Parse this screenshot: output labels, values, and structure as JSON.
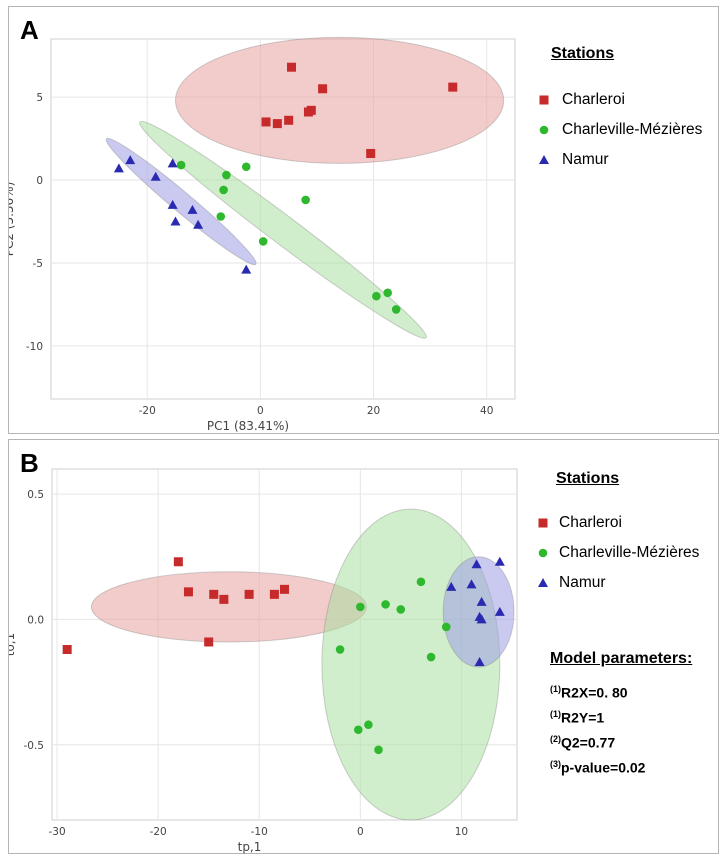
{
  "colors": {
    "Charleroi": "#c62a2a",
    "Charleville-Mézières": "#2eb82e",
    "Namur": "#2a2ab0",
    "ellipse_Charleroi": "#e8a0a0",
    "ellipse_Charleville-Mézières": "#a9e0a0",
    "ellipse_Namur": "#9f9fe6"
  },
  "panelA": {
    "letter": "A",
    "legend_title": "Stations",
    "legend": [
      "Charleroi",
      "Charleville-Mézières",
      "Namur"
    ]
  },
  "panelB": {
    "letter": "B",
    "legend_title": "Stations",
    "legend": [
      "Charleroi",
      "Charleville-Mézières",
      "Namur"
    ],
    "model_params_title": "Model parameters:",
    "model_params": [
      {
        "sup": "(1)",
        "text": "R2X=0. 80"
      },
      {
        "sup": "(1)",
        "text": "R2Y=1"
      },
      {
        "sup": "(2)",
        "text": "Q2=0.77"
      },
      {
        "sup": "(3)",
        "text": "p-value=0.02"
      }
    ]
  },
  "chart_data": [
    {
      "type": "scatter",
      "title": "",
      "xlabel": "PC1 (83.41%)",
      "ylabel": "PC2 (5.56%)",
      "xlim": [
        -37,
        45
      ],
      "ylim": [
        -13.2,
        8.5
      ],
      "xticks": [
        -20,
        0,
        20,
        40
      ],
      "yticks": [
        5,
        0,
        -5,
        -10
      ],
      "grid": true,
      "legend_position": "right",
      "series": [
        {
          "name": "Charleroi",
          "marker": "square",
          "points": [
            [
              5.5,
              6.8
            ],
            [
              11,
              5.5
            ],
            [
              34,
              5.6
            ],
            [
              1,
              3.5
            ],
            [
              3,
              3.4
            ],
            [
              5,
              3.6
            ],
            [
              8.5,
              4.1
            ],
            [
              9,
              4.2
            ],
            [
              19.5,
              1.6
            ]
          ]
        },
        {
          "name": "Charleville-Mézières",
          "marker": "circle",
          "points": [
            [
              -14,
              0.9
            ],
            [
              -6,
              0.3
            ],
            [
              -2.5,
              0.8
            ],
            [
              -6.5,
              -0.6
            ],
            [
              -7,
              -2.2
            ],
            [
              8,
              -1.2
            ],
            [
              0.5,
              -3.7
            ],
            [
              20.5,
              -7.0
            ],
            [
              22.5,
              -6.8
            ],
            [
              24,
              -7.8
            ]
          ]
        },
        {
          "name": "Namur",
          "marker": "triangle",
          "points": [
            [
              -25,
              0.7
            ],
            [
              -23,
              1.2
            ],
            [
              -15.5,
              1.0
            ],
            [
              -18.5,
              0.2
            ],
            [
              -15.5,
              -1.5
            ],
            [
              -12,
              -1.8
            ],
            [
              -15,
              -2.5
            ],
            [
              -11,
              -2.7
            ],
            [
              -2.5,
              -5.4
            ]
          ]
        }
      ],
      "ellipses": [
        {
          "series": "Charleroi",
          "cx": 14,
          "cy": 4.8,
          "rx": 29,
          "ry": 3.8,
          "angle": 0
        },
        {
          "series": "Charleville-Mézières",
          "cx": 4,
          "cy": -3.0,
          "rx": 56,
          "ry": 4.4,
          "angle": 37
        },
        {
          "series": "Namur",
          "cx": -14,
          "cy": -1.3,
          "rx": 30.5,
          "ry": 3.1,
          "angle": 40
        }
      ]
    },
    {
      "type": "scatter",
      "title": "",
      "xlabel": "tp,1",
      "ylabel": "to,1",
      "xlim": [
        -30.5,
        15.5
      ],
      "ylim": [
        -0.8,
        0.6
      ],
      "xticks": [
        -30,
        -20,
        -10,
        0,
        10
      ],
      "yticks": [
        0.5,
        0.0,
        -0.5
      ],
      "grid": true,
      "legend_position": "right",
      "series": [
        {
          "name": "Charleroi",
          "marker": "square",
          "points": [
            [
              -29,
              -0.12
            ],
            [
              -18,
              0.23
            ],
            [
              -17,
              0.11
            ],
            [
              -14.5,
              0.1
            ],
            [
              -13.5,
              0.08
            ],
            [
              -11,
              0.1
            ],
            [
              -8.5,
              0.1
            ],
            [
              -7.5,
              0.12
            ],
            [
              -15,
              -0.09
            ]
          ]
        },
        {
          "name": "Charleville-Mézières",
          "marker": "circle",
          "points": [
            [
              0,
              0.05
            ],
            [
              2.5,
              0.06
            ],
            [
              4,
              0.04
            ],
            [
              6,
              0.15
            ],
            [
              8.5,
              -0.03
            ],
            [
              -2,
              -0.12
            ],
            [
              7,
              -0.15
            ],
            [
              -0.2,
              -0.44
            ],
            [
              0.8,
              -0.42
            ],
            [
              1.8,
              -0.52
            ]
          ]
        },
        {
          "name": "Namur",
          "marker": "triangle",
          "points": [
            [
              11.5,
              0.22
            ],
            [
              13.8,
              0.23
            ],
            [
              9,
              0.13
            ],
            [
              11,
              0.14
            ],
            [
              12,
              0.07
            ],
            [
              13.8,
              0.03
            ],
            [
              11.8,
              0.01
            ],
            [
              12,
              0.0
            ],
            [
              11.8,
              -0.17
            ]
          ]
        }
      ],
      "ellipses": [
        {
          "series": "Charleroi",
          "cx": -13,
          "cy": 0.05,
          "rx": 13.6,
          "ry": 0.14,
          "angle": 0
        },
        {
          "series": "Charleville-Mézières",
          "cx": 5,
          "cy": -0.18,
          "rx": 8.8,
          "ry": 0.62,
          "angle": 0
        },
        {
          "series": "Namur",
          "cx": 11.7,
          "cy": 0.03,
          "rx": 3.5,
          "ry": 0.22,
          "angle": 0
        }
      ]
    }
  ]
}
